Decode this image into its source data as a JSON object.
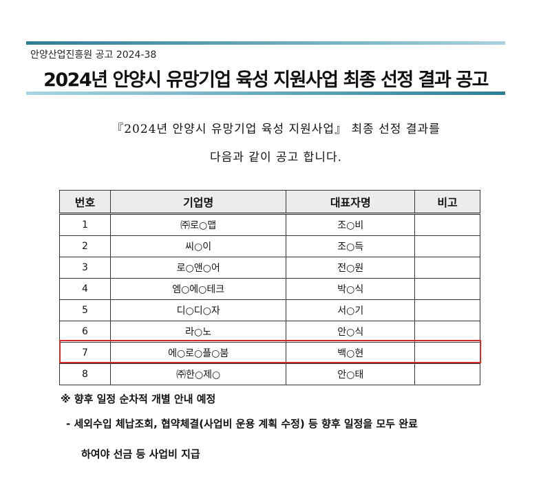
{
  "header": {
    "notice_number": "안양산업진흥원 공고 2024-38",
    "title": "2024년 안양시 유망기업 육성 지원사업 최종 선정 결과 공고"
  },
  "intro": {
    "line1": "『2024년 안양시 유망기업 육성 지원사업』 최종 선정 결과를",
    "line2": "다음과 같이 공고 합니다."
  },
  "table": {
    "columns": [
      "번호",
      "기업명",
      "대표자명",
      "비고"
    ],
    "rows": [
      {
        "no": "1",
        "company": "㈜로○맵",
        "ceo": "조○비",
        "note": ""
      },
      {
        "no": "2",
        "company": "씨○이",
        "ceo": "조○득",
        "note": ""
      },
      {
        "no": "3",
        "company": "로○앤○어",
        "ceo": "전○원",
        "note": ""
      },
      {
        "no": "4",
        "company": "엠○에○테크",
        "ceo": "박○식",
        "note": ""
      },
      {
        "no": "5",
        "company": "디○디○자",
        "ceo": "서○기",
        "note": ""
      },
      {
        "no": "6",
        "company": "라○노",
        "ceo": "안○식",
        "note": ""
      },
      {
        "no": "7",
        "company": "에○로○플○붐",
        "ceo": "백○현",
        "note": ""
      },
      {
        "no": "8",
        "company": "㈜한○제○",
        "ceo": "안○태",
        "note": ""
      }
    ],
    "highlighted_row": "7",
    "highlight_color": "#d02a2a"
  },
  "notes": {
    "line1": "※ 향후 일정 순차적 개별 안내 예정",
    "line2": "- 세외수입 체납조회, 협약체결(사업비 운용 계획 수정) 등 향후 일정을 모두 완료",
    "line3": "하여야 선금 등 사업비 지급"
  }
}
